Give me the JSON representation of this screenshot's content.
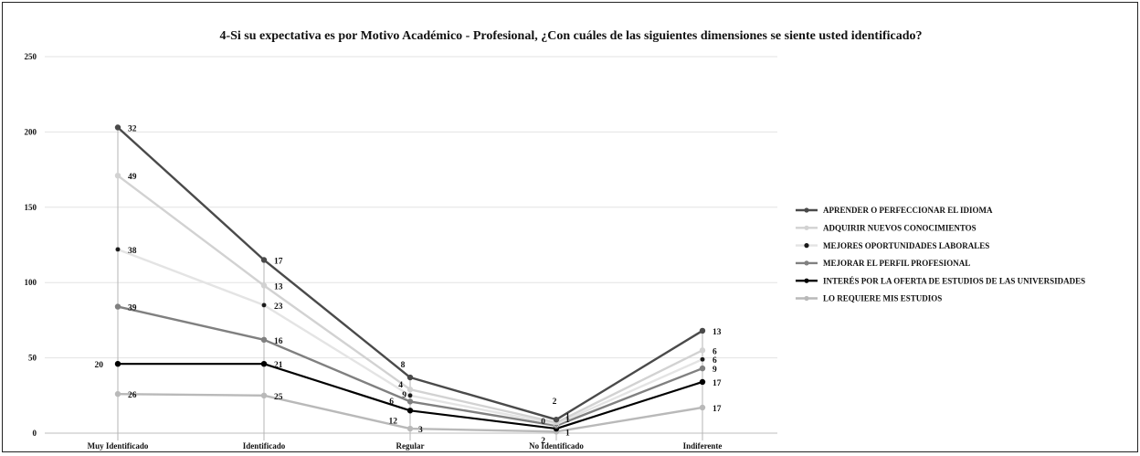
{
  "chart_data": {
    "type": "line",
    "title": "4-Si su expectativa es por Motivo Académico - Profesional, ¿Con cuáles de las siguientes dimensiones se siente usted identificado?",
    "categories": [
      "Muy Identificado",
      "Identificado",
      "Regular",
      "No Identificado",
      "Indiferente"
    ],
    "ylim": [
      0,
      250
    ],
    "yticks": [
      0,
      50,
      100,
      150,
      200,
      250
    ],
    "grid": true,
    "stacked": true,
    "legend_position": "right",
    "series": [
      {
        "name": "APRENDER O PERFECCIONAR EL IDIOMA",
        "color": "#4a4a4a",
        "values": [
          32,
          17,
          8,
          2,
          13
        ],
        "cumulative": [
          203,
          115,
          37,
          9,
          68
        ]
      },
      {
        "name": "ADQUIRIR NUEVOS CONOCIMIENTOS",
        "color": "#d2d2d2",
        "values": [
          49,
          13,
          4,
          1,
          6
        ],
        "cumulative": [
          171,
          98,
          29,
          7,
          55
        ]
      },
      {
        "name": "MEJORES OPORTUNIDADES LABORALES",
        "color": "#e4e4e4",
        "values": [
          38,
          23,
          9,
          1,
          6
        ],
        "cumulative": [
          122,
          85,
          25,
          6,
          49
        ]
      },
      {
        "name": "MEJORAR EL PERFIL PROFESIONAL",
        "color": "#808080",
        "values": [
          39,
          16,
          6,
          0,
          9
        ],
        "cumulative": [
          84,
          62,
          21,
          5,
          43
        ]
      },
      {
        "name": "INTERÉS POR LA OFERTA DE ESTUDIOS DE LAS UNIVERSIDADES",
        "color": "#000000",
        "values": [
          20,
          21,
          12,
          2,
          17
        ],
        "cumulative": [
          46,
          46,
          15,
          3,
          34
        ]
      },
      {
        "name": "LO REQUIERE MIS ESTUDIOS",
        "color": "#b9b9b9",
        "values": [
          26,
          25,
          3,
          1,
          17
        ],
        "cumulative": [
          26,
          25,
          3,
          1,
          17
        ]
      }
    ]
  }
}
